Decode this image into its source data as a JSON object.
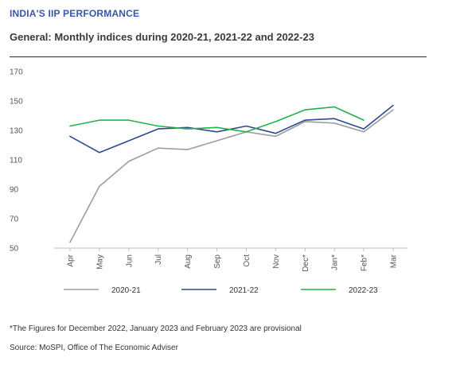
{
  "header": {
    "brand": "INDIA'S IIP PERFORMANCE",
    "title": "General: Monthly indices during 2020-21, 2021-22 and 2022-23"
  },
  "chart_data": {
    "type": "line",
    "title": "General: Monthly indices during 2020-21, 2021-22 and 2022-23",
    "xlabel": "",
    "ylabel": "",
    "categories": [
      "Apr",
      "May",
      "Jun",
      "Jul",
      "Aug",
      "Sep",
      "Oct",
      "Nov",
      "Dec*",
      "Jan*",
      "Feb*",
      "Mar"
    ],
    "ylim": [
      50,
      170
    ],
    "yticks": [
      50,
      70,
      90,
      110,
      130,
      150,
      170
    ],
    "grid": false,
    "legend_position": "bottom",
    "series": [
      {
        "name": "2020-21",
        "color": "#9e9e9e",
        "values": [
          54,
          92,
          109,
          118,
          117,
          123,
          129,
          126,
          136,
          135,
          129,
          144
        ]
      },
      {
        "name": "2021-22",
        "color": "#2e4a8c",
        "values": [
          126,
          115,
          123,
          131,
          132,
          129,
          133,
          128,
          137,
          138,
          131,
          147
        ]
      },
      {
        "name": "2022-23",
        "color": "#22b24c",
        "values": [
          133,
          137,
          137,
          133,
          131,
          132,
          129,
          136,
          144,
          146,
          137,
          null
        ]
      }
    ]
  },
  "footnote": "*The Figures for December 2022, January 2023 and February 2023 are provisional",
  "source": "Source: MoSPI, Office of The Economic Adviser"
}
